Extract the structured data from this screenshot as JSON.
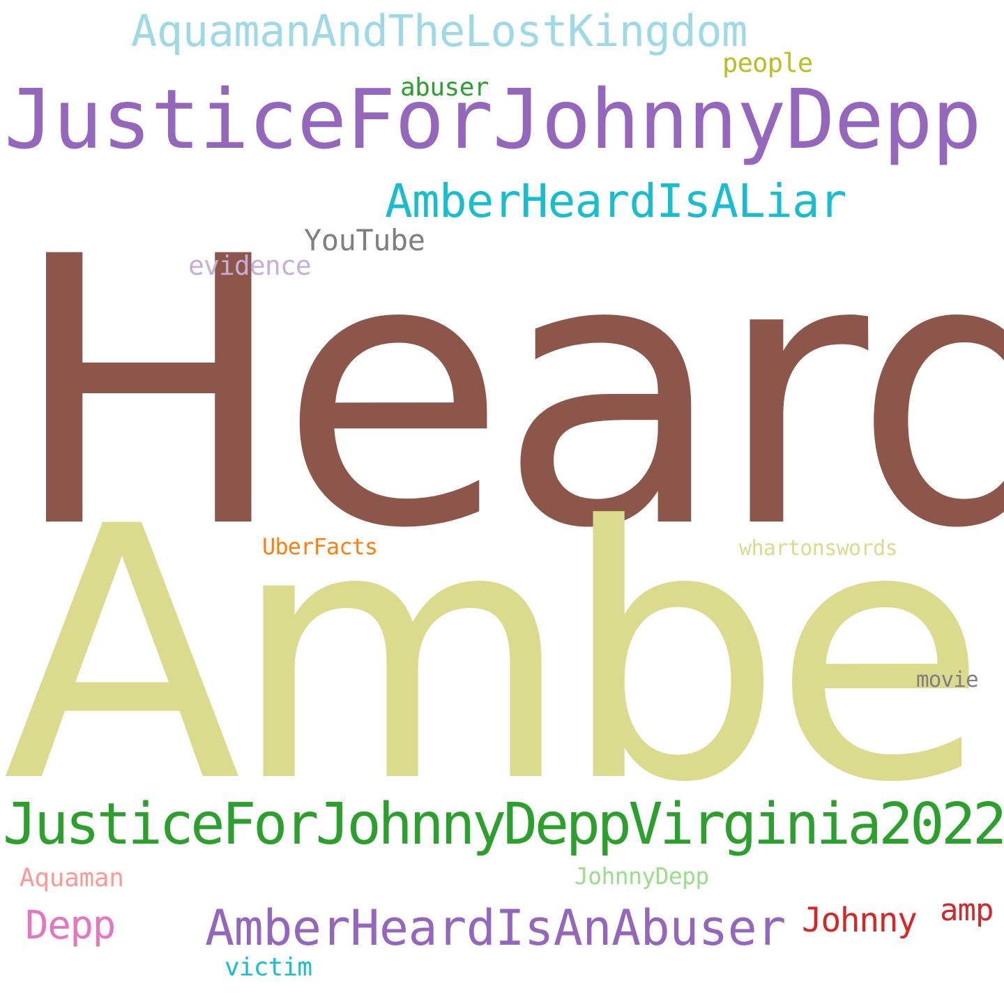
{
  "words": [
    {
      "text": "Heard",
      "color": "#8c564b"
    },
    {
      "text": "Amber",
      "color": "#dbdb8d"
    },
    {
      "text": "JusticeForJohnnyDepp",
      "color": "#9467bd"
    },
    {
      "text": "JusticeForJohnnyDeppVirginia2022",
      "color": "#2ca02c"
    },
    {
      "text": "AquamanAndTheLostKingdom",
      "color": "#9edae5"
    },
    {
      "text": "AmberHeardIsALiar",
      "color": "#17becf"
    },
    {
      "text": "AmberHeardIsAnAbuser",
      "color": "#9467bd"
    },
    {
      "text": "YouTube",
      "color": "#7f7f7f"
    },
    {
      "text": "evidence",
      "color": "#c5b0d5"
    },
    {
      "text": "abuser",
      "color": "#2ca02c"
    },
    {
      "text": "people",
      "color": "#bcbd22"
    },
    {
      "text": "UberFacts",
      "color": "#ff7f0e"
    },
    {
      "text": "whartonswords",
      "color": "#dbdb8d"
    },
    {
      "text": "movie",
      "color": "#7f7f7f"
    },
    {
      "text": "Aquaman",
      "color": "#ff9896"
    },
    {
      "text": "JohnnyDepp",
      "color": "#98df8a"
    },
    {
      "text": "Depp",
      "color": "#e377c2"
    },
    {
      "text": "Johnny",
      "color": "#d62728"
    },
    {
      "text": "amp",
      "color": "#d62728"
    },
    {
      "text": "victim",
      "color": "#17becf"
    }
  ]
}
